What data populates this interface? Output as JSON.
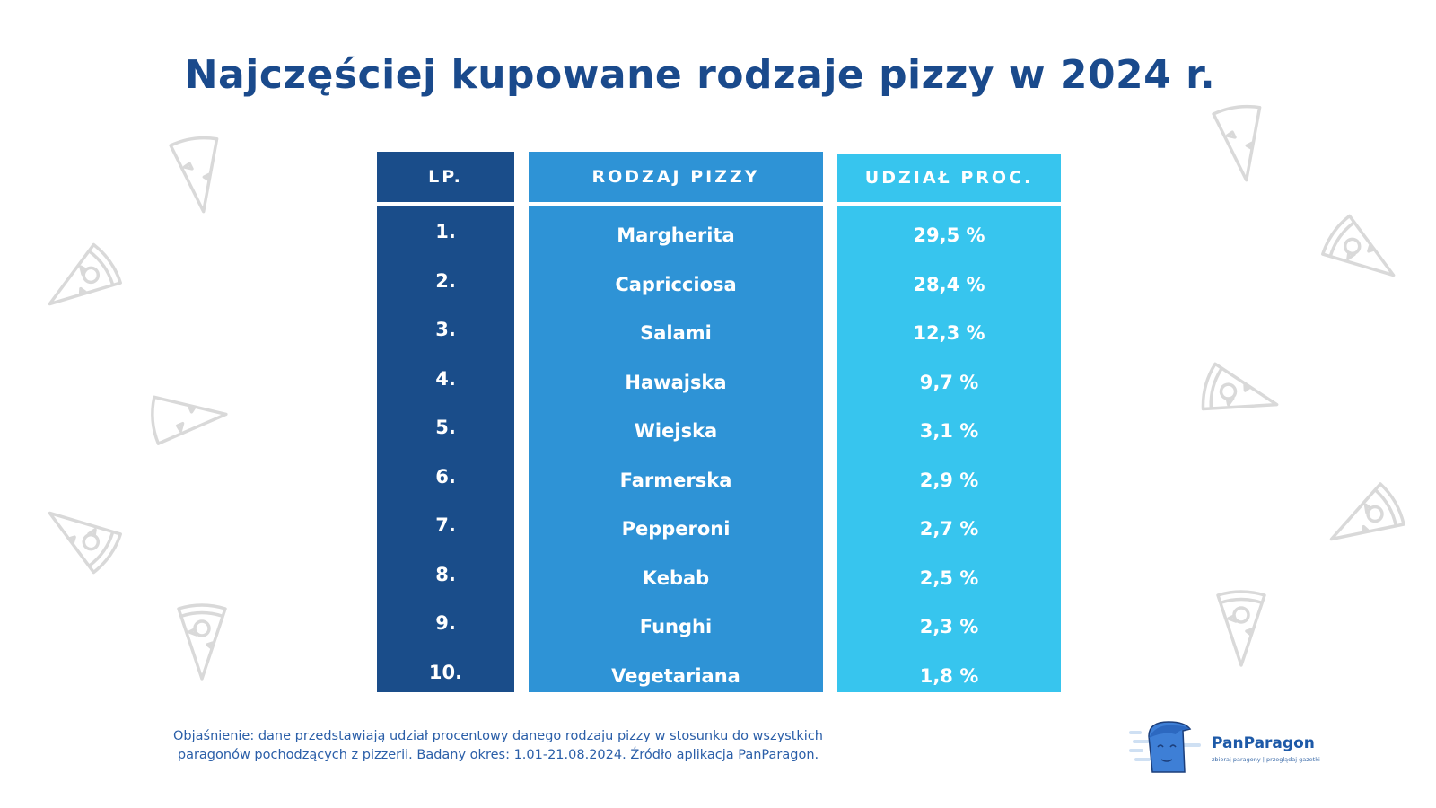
{
  "title": "Najczęściej kupowane rodzaje pizzy w 2024 r.",
  "table": {
    "headers": [
      "LP.",
      "RODZAJ PIZZY",
      "UDZIAŁ PROC."
    ],
    "rows": [
      {
        "rank": "1.",
        "name": "Margherita",
        "share": "29,5 %"
      },
      {
        "rank": "2.",
        "name": "Capricciosa",
        "share": "28,4 %"
      },
      {
        "rank": "3.",
        "name": "Salami",
        "share": "12,3 %"
      },
      {
        "rank": "4.",
        "name": "Hawajska",
        "share": "9,7 %"
      },
      {
        "rank": "5.",
        "name": "Wiejska",
        "share": "3,1 %"
      },
      {
        "rank": "6.",
        "name": "Farmerska",
        "share": "2,9 %"
      },
      {
        "rank": "7.",
        "name": "Pepperoni",
        "share": "2,7 %"
      },
      {
        "rank": "8.",
        "name": "Kebab",
        "share": "2,5 %"
      },
      {
        "rank": "9.",
        "name": "Funghi",
        "share": "2,3 %"
      },
      {
        "rank": "10.",
        "name": "Vegetariana",
        "share": "1,8 %"
      }
    ]
  },
  "footnote": {
    "line1": "Objaśnienie: dane przedstawiają udział procentowy danego rodzaju pizzy w stosunku do wszystkich",
    "line2": "paragonów pochodzących z pizzerii. Badany okres: 1.01-21.08.2024. Źródło aplikacja PanParagon."
  },
  "logo": {
    "brand": "PanParagon",
    "tagline": "zbieraj paragony | przeglądaj gazetki",
    "icon": "mascot-face-icon"
  },
  "colors": {
    "title": "#1a4a8c",
    "col_rank": "#1a4d8a",
    "col_name": "#2e93d6",
    "col_share": "#37c5ee",
    "decor": "#d9d9d9"
  },
  "chart_data": {
    "type": "table",
    "title": "Najczęściej kupowane rodzaje pizzy w 2024 r.",
    "columns": [
      "LP.",
      "RODZAJ PIZZY",
      "UDZIAŁ PROC."
    ],
    "categories": [
      "Margherita",
      "Capricciosa",
      "Salami",
      "Hawajska",
      "Wiejska",
      "Farmerska",
      "Pepperoni",
      "Kebab",
      "Funghi",
      "Vegetariana"
    ],
    "values": [
      29.5,
      28.4,
      12.3,
      9.7,
      3.1,
      2.9,
      2.7,
      2.5,
      2.3,
      1.8
    ],
    "unit": "%"
  }
}
